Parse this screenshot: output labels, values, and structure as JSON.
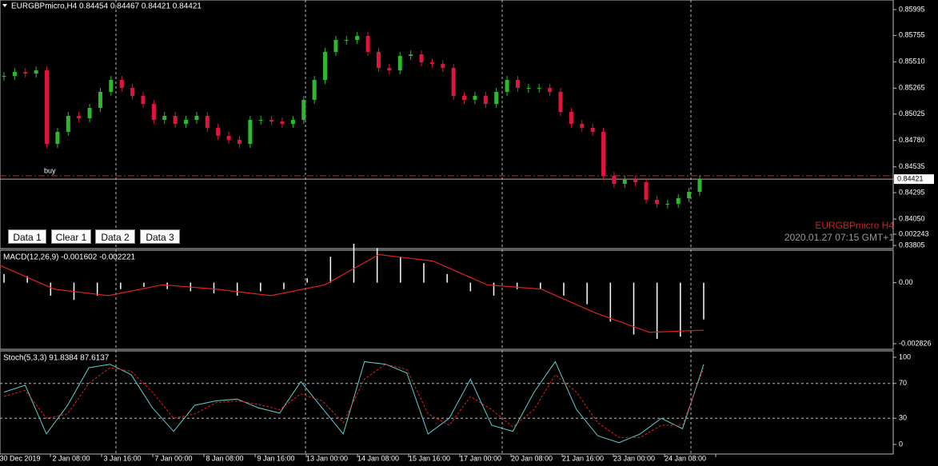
{
  "header": {
    "symbol_info": "EURGBPmicro,H4  0.84454 0.84467 0.84421 0.84421"
  },
  "buttons": [
    "Data 1",
    "Clear 1",
    "Data 2",
    "Data 3"
  ],
  "watermark": {
    "symbol": "EURGBPmicro H4",
    "time": "2020.01.27 07:15 GMT+1"
  },
  "price_chart": {
    "type": "candlestick",
    "ylim": [
      0.83776,
      0.86084
    ],
    "yticks": [
      0.85995,
      0.85755,
      {
        "value": 0.8551,
        "label": "0.85510"
      },
      0.85265,
      0.85025,
      {
        "value": 0.8478,
        "label": "0.84780"
      },
      0.84535,
      0.84295,
      {
        "value": 0.8405,
        "label": "0.84050"
      },
      0.83805
    ],
    "bid": 0.84421,
    "buy_line": {
      "label": "buy",
      "value": 0.84452
    },
    "closes": [
      0.85379,
      0.85416,
      0.85401,
      0.85431,
      0.84748,
      0.8486,
      0.85008,
      0.84986,
      0.85082,
      0.85231,
      0.85342,
      0.85268,
      0.85194,
      0.85119,
      0.84971,
      0.85008,
      0.84934,
      0.84971,
      0.85008,
      0.84897,
      0.84823,
      0.84786,
      0.84748,
      0.84971,
      0.84971,
      0.84956,
      0.84934,
      0.84971,
      0.85157,
      0.85342,
      0.85602,
      0.85713,
      0.85713,
      0.8575,
      0.85602,
      0.85453,
      0.85431,
      0.85565,
      0.85579,
      0.85505,
      0.8549,
      0.85453,
      0.85194,
      0.85157,
      0.85194,
      0.85119,
      0.85231,
      0.85342,
      0.85268,
      0.85268,
      0.85268,
      0.85231,
      0.85045,
      0.84934,
      0.84897,
      0.8486,
      0.84452,
      0.84377,
      0.84415,
      0.84392,
      0.84229,
      0.84192,
      0.84192,
      0.84244,
      0.84303,
      0.84421
    ]
  },
  "x_labels": [
    "30 Dec 2019",
    "2 Jan 08:00",
    "3 Jan 16:00",
    "7 Jan 00:00",
    "8 Jan 08:00",
    "9 Jan 16:00",
    "13 Jan 00:00",
    "14 Jan 08:00",
    "15 Jan 16:00",
    "17 Jan 00:00",
    "20 Jan 08:00",
    "21 Jan 16:00",
    "23 Jan 00:00",
    "24 Jan 08:00"
  ],
  "macd": {
    "label": "MACD(12,26,9) -0.001602 -0.002221",
    "ylim": [
      -0.002826,
      0.002243
    ],
    "yticks": [
      0.002243,
      {
        "value": 0,
        "label": "0.00"
      },
      -0.002826
    ],
    "histogram": [
      0.0004,
      0.0003,
      -0.0006,
      -0.0008,
      -0.0006,
      -0.0003,
      -0.0002,
      -0.0003,
      -0.0004,
      -0.0005,
      -0.0006,
      -0.0004,
      -0.0003,
      0.0002,
      0.0012,
      0.0018,
      0.0016,
      0.0012,
      0.0009,
      0.0004,
      -0.0004,
      -0.0006,
      -0.0003,
      -0.0003,
      -0.0006,
      -0.001,
      -0.0018,
      -0.0024,
      -0.0026,
      -0.0025,
      -0.0017
    ],
    "signal": [
      0.0008,
      -0.0003,
      -0.0006,
      -0.0001,
      -0.0003,
      -0.0006,
      -0.0001,
      0.0013,
      0.001,
      -0.0001,
      -0.0003,
      -0.0014,
      -0.0023,
      -0.0022
    ]
  },
  "stoch": {
    "label": "Stoch(5,3,3) 91.8384 87.6137",
    "ylim": [
      0,
      100
    ],
    "yticks": [
      100,
      70,
      30,
      0
    ],
    "main": [
      60,
      68,
      12,
      45,
      88,
      92,
      80,
      42,
      15,
      45,
      50,
      52,
      42,
      36,
      72,
      42,
      12,
      95,
      92,
      82,
      12,
      30,
      75,
      22,
      15,
      60,
      95,
      40,
      10,
      2,
      12,
      30,
      18,
      91.8384
    ],
    "signal": [
      55,
      62,
      30,
      35,
      70,
      88,
      84,
      60,
      30,
      35,
      48,
      50,
      46,
      40,
      58,
      50,
      25,
      75,
      92,
      86,
      35,
      22,
      55,
      40,
      20,
      40,
      80,
      60,
      25,
      8,
      8,
      22,
      22,
      87.6137
    ]
  }
}
